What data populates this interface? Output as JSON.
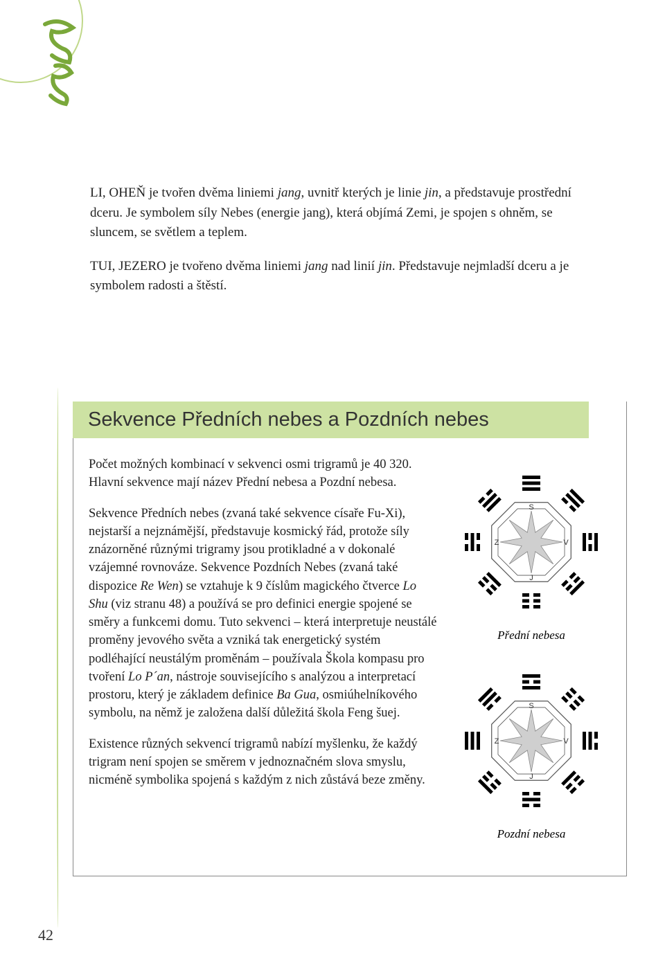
{
  "page_number": "42",
  "intro": {
    "p1_a": "LI, OHEŇ je tvořen dvěma liniemi ",
    "p1_jang": "jang",
    "p1_b": ", uvnitř kterých je linie ",
    "p1_jin": "jin",
    "p1_c": ", a představuje prostřední dceru. Je symbolem síly Nebes (energie jang), která objímá Zemi, je spojen s ohněm, se sluncem, se světlem a teplem.",
    "p2_a": "TUI, JEZERO je tvořeno dvěma liniemi ",
    "p2_jang": "jang",
    "p2_b": " nad linií ",
    "p2_jin": "jin",
    "p2_c": ". Představuje nejmladší dceru a je symbolem radosti a štěstí."
  },
  "section": {
    "title": "Sekvence Předních nebes a Pozdních nebes",
    "p1": "Počet možných kombinací v sekvenci osmi trigramů je 40 320. Hlavní sekvence mají název Přední nebesa a Pozdní nebesa.",
    "p2_a": "Sekvence Předních nebes (zvaná také sekvence císaře Fu-Xi), nejstarší a nejznámější, představuje kosmický řád, protože síly znázorněné různými trigramy jsou protikladné a v dokonalé vzájemné rovnováze. Sekvence Pozdních Nebes (zvaná také dispozice ",
    "p2_re": "Re Wen",
    "p2_b": ") se vztahuje k 9 číslům magického čtverce ",
    "p2_lo": "Lo Shu",
    "p2_c": " (viz stranu 48) a používá se pro definici energie spojené se směry a funkcemi domu. Tuto sekvenci – která interpretuje neustálé proměny jevového světa a vzniká tak energetický systém podléhající neustálým proměnám – používala Škola kompasu pro tvoření ",
    "p2_lop": "Lo P´an",
    "p2_d": ", nástroje souvisejícího s analýzou a interpretací prostoru, který je základem definice ",
    "p2_bg": "Ba Gua",
    "p2_e": ", osmiúhelníkového symbolu, na němž je založena další důležitá škola Feng šuej.",
    "p3": "Existence různých sekvencí trigramů nabízí myšlenku, že každý trigram není spojen se směrem v jednoznačném slova smyslu, nicméně symbolika spojená s každým z nich zůstává beze změny."
  },
  "diagrams": {
    "caption1": "Přední nebesa",
    "caption2": "Pozdní nebesa",
    "compass": {
      "S": "S",
      "Z": "Z",
      "V": "V",
      "J": "J"
    },
    "colors": {
      "trigram": "#000000",
      "octagon_stroke": "#555",
      "star_fill": "#cfcfcf",
      "star_stroke": "#888"
    },
    "bagua1": [
      [
        1,
        1,
        1
      ],
      [
        1,
        1,
        0
      ],
      [
        1,
        0,
        1
      ],
      [
        1,
        0,
        0
      ],
      [
        0,
        0,
        0
      ],
      [
        0,
        0,
        1
      ],
      [
        0,
        1,
        0
      ],
      [
        0,
        1,
        1
      ]
    ],
    "bagua2": [
      [
        1,
        0,
        1
      ],
      [
        0,
        0,
        0
      ],
      [
        0,
        1,
        1
      ],
      [
        0,
        0,
        1
      ],
      [
        0,
        1,
        0
      ],
      [
        1,
        0,
        0
      ],
      [
        1,
        1,
        1
      ],
      [
        1,
        1,
        0
      ]
    ]
  }
}
